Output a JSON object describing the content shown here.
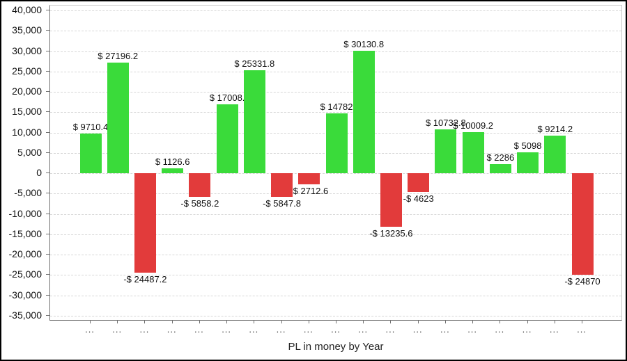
{
  "chart_data": {
    "type": "bar",
    "title": "PL in money by Year",
    "xlabel": "",
    "ylabel": "",
    "grid": "horizontal-dashed",
    "legend": "none",
    "ylim": [
      -36400,
      41200
    ],
    "y_ticks": [
      {
        "value": 40000,
        "label": "40,000"
      },
      {
        "value": 35000,
        "label": "35,000"
      },
      {
        "value": 30000,
        "label": "30,000"
      },
      {
        "value": 25000,
        "label": "25,000"
      },
      {
        "value": 20000,
        "label": "20,000"
      },
      {
        "value": 15000,
        "label": "15,000"
      },
      {
        "value": 10000,
        "label": "10,000"
      },
      {
        "value": 5000,
        "label": "5,000"
      },
      {
        "value": 0,
        "label": "0"
      },
      {
        "value": -5000,
        "label": "-5,000"
      },
      {
        "value": -10000,
        "label": "-10,000"
      },
      {
        "value": -15000,
        "label": "-15,000"
      },
      {
        "value": -20000,
        "label": "-20,000"
      },
      {
        "value": -25000,
        "label": "-25,000"
      },
      {
        "value": -30000,
        "label": "-30,000"
      },
      {
        "value": -35000,
        "label": "-35,000"
      }
    ],
    "categories": [
      "...",
      "...",
      "...",
      "...",
      "...",
      "...",
      "...",
      "...",
      "...",
      "...",
      "...",
      "...",
      "...",
      "...",
      "...",
      "...",
      "...",
      "...",
      "..."
    ],
    "values": [
      9710.4,
      27196.2,
      -24487.2,
      1126.6,
      -5858.2,
      17008,
      25331.8,
      -5847.8,
      -2712.6,
      14782,
      30130.8,
      -13235.6,
      -4623,
      10732.8,
      10009.2,
      2286,
      5098,
      9214.2,
      -24870
    ],
    "bar_labels": [
      "$ 9710.4",
      "$ 27196.2",
      "-$ 24487.2",
      "$ 1126.6",
      "-$ 5858.2",
      "$ 17008.",
      "$ 25331.8",
      "-$ 5847.8",
      "-$ 2712.6",
      "$ 14782",
      "$ 30130.8",
      "-$ 13235.6",
      "-$ 4623",
      "$ 10732.8",
      "$ 10009.2",
      "$ 2286",
      "$ 5098",
      "$ 9214.2",
      "-$ 24870"
    ],
    "colors": {
      "positive": "#3adb3a",
      "negative": "#e23b3b",
      "gridline": "#d6d6d6",
      "axis": "#707070",
      "label_text": "#111111"
    }
  }
}
